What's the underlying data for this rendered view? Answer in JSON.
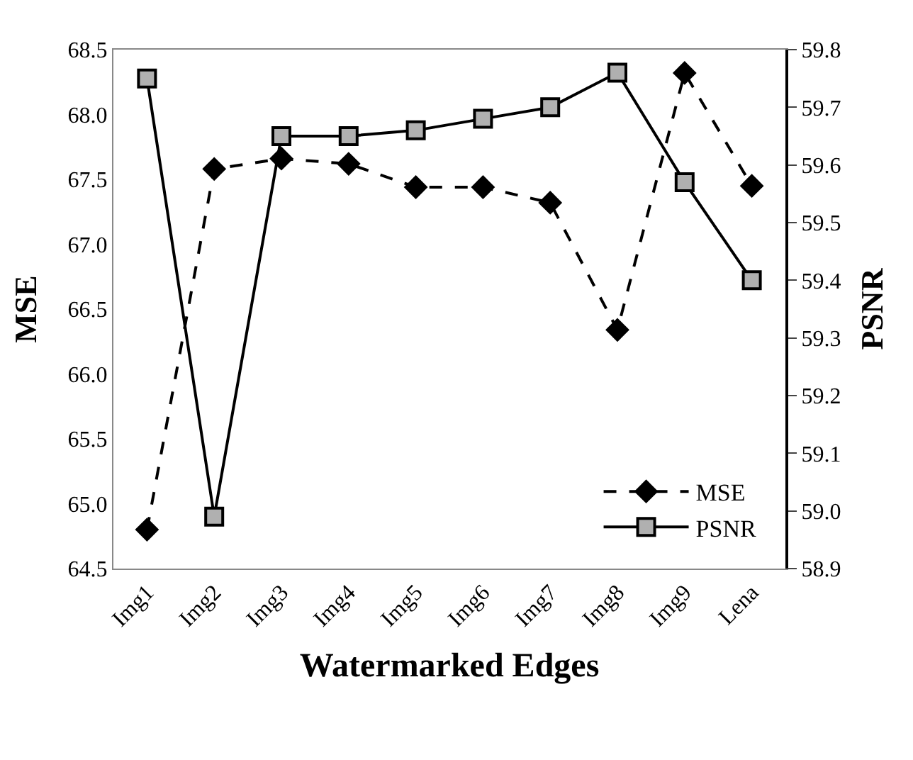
{
  "chart_data": {
    "type": "line",
    "xlabel": "Watermarked Edges",
    "ylabel": "MSE",
    "y2label": "PSNR",
    "categories": [
      "Img1",
      "Img2",
      "Img3",
      "Img4",
      "Img5",
      "Img6",
      "Img7",
      "Img8",
      "Img9",
      "Lena"
    ],
    "series": [
      {
        "name": "MSE",
        "color": "#000000",
        "marker": "diamond",
        "line_style": "dashed",
        "values": [
          64.8,
          67.58,
          67.66,
          67.62,
          67.44,
          67.44,
          67.32,
          66.34,
          68.32,
          67.45
        ]
      },
      {
        "name": "PSNR",
        "color": "#000000",
        "marker": "square",
        "line_style": "solid",
        "axis": "y2",
        "values": [
          59.75,
          58.99,
          59.65,
          59.65,
          59.66,
          59.68,
          59.7,
          59.76,
          59.57,
          59.4
        ]
      }
    ],
    "ylim": [
      64.5,
      68.5
    ],
    "yticks": [
      64.5,
      {
        "value": 65,
        "label": "65.0"
      },
      65.5,
      {
        "value": 66,
        "label": "66.0"
      },
      66.5,
      {
        "value": 67,
        "label": "67.0"
      },
      67.5,
      {
        "value": 68,
        "label": "68.0"
      },
      68.5
    ],
    "y2lim": [
      58.9,
      59.8
    ],
    "y2ticks": [
      58.9,
      {
        "value": 59,
        "label": "59.0"
      },
      59.1,
      59.2,
      59.3,
      59.4,
      59.5,
      59.6,
      59.7,
      59.8
    ],
    "legend": "bottom right"
  }
}
